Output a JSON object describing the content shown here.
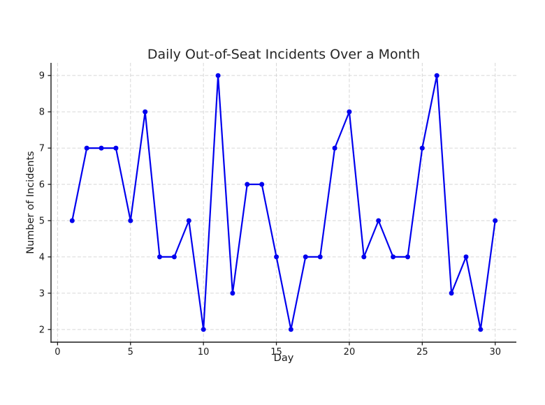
{
  "chart_data": {
    "type": "line",
    "title": "Daily Out-of-Seat Incidents Over a Month",
    "xlabel": "Day",
    "ylabel": "Number of Incidents",
    "x": [
      1,
      2,
      3,
      4,
      5,
      6,
      7,
      8,
      9,
      10,
      11,
      12,
      13,
      14,
      15,
      16,
      17,
      18,
      19,
      20,
      21,
      22,
      23,
      24,
      25,
      26,
      27,
      28,
      29,
      30
    ],
    "values": [
      5,
      7,
      7,
      7,
      5,
      8,
      4,
      4,
      5,
      2,
      9,
      3,
      6,
      6,
      4,
      2,
      4,
      4,
      7,
      8,
      4,
      5,
      4,
      4,
      7,
      9,
      3,
      4,
      2,
      5
    ],
    "xticks": [
      0,
      5,
      10,
      15,
      20,
      25,
      30
    ],
    "yticks": [
      2,
      3,
      4,
      5,
      6,
      7,
      8,
      9
    ],
    "xlim": [
      -0.45,
      31.45
    ],
    "ylim": [
      1.65,
      9.35
    ],
    "grid": true,
    "legend": "none",
    "line_color": "#0000ee",
    "marker": "circle",
    "marker_color": "#0000ee",
    "grid_color": "#d6d6d6",
    "background_color": "#ffffff",
    "text_color": "#191919"
  }
}
